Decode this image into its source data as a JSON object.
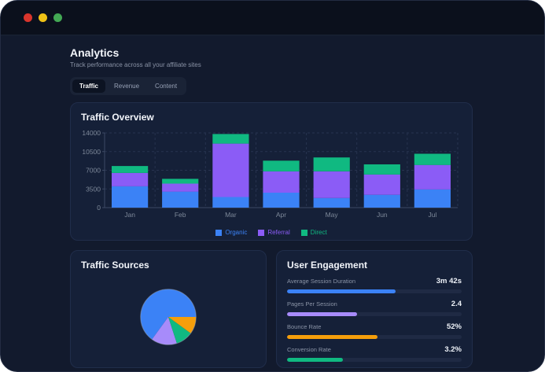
{
  "window": {
    "traffic_lights": [
      {
        "name": "close",
        "color": "#d9352c"
      },
      {
        "name": "minimize",
        "color": "#f0c216"
      },
      {
        "name": "maximize",
        "color": "#43a854"
      }
    ]
  },
  "header": {
    "title": "Analytics",
    "subtitle": "Track performance across all your affiliate sites"
  },
  "tabs": [
    {
      "label": "Traffic",
      "active": true
    },
    {
      "label": "Revenue",
      "active": false
    },
    {
      "label": "Content",
      "active": false
    }
  ],
  "traffic_overview": {
    "title": "Traffic Overview"
  },
  "traffic_sources": {
    "title": "Traffic Sources"
  },
  "user_engagement": {
    "title": "User Engagement",
    "metrics": [
      {
        "label": "Average Session Duration",
        "value": "3m 42s",
        "percent": 62,
        "color": "#3b82f6"
      },
      {
        "label": "Pages Per Session",
        "value": "2.4",
        "percent": 40,
        "color": "#a78bfa"
      },
      {
        "label": "Bounce Rate",
        "value": "52%",
        "percent": 52,
        "color": "#f59e0b"
      },
      {
        "label": "Conversion Rate",
        "value": "3.2%",
        "percent": 32,
        "color": "#10b981"
      }
    ]
  },
  "chart_data": [
    {
      "type": "bar",
      "stacked": true,
      "title": "Traffic Overview",
      "categories": [
        "Jan",
        "Feb",
        "Mar",
        "Apr",
        "May",
        "Jun",
        "Jul"
      ],
      "series": [
        {
          "name": "Organic",
          "color": "#3b82f6",
          "values": [
            4000,
            3000,
            2000,
            2800,
            1800,
            2400,
            3400
          ]
        },
        {
          "name": "Referral",
          "color": "#8b5cf6",
          "values": [
            2500,
            1500,
            10000,
            4000,
            5000,
            3800,
            4600
          ]
        },
        {
          "name": "Direct",
          "color": "#10b981",
          "values": [
            1300,
            900,
            1800,
            2000,
            2600,
            1900,
            2100
          ]
        }
      ],
      "xlabel": "",
      "ylabel": "",
      "ylim": [
        0,
        14000
      ],
      "yticks": [
        0,
        3500,
        7000,
        10500,
        14000
      ],
      "grid": "dashed",
      "legend_position": "bottom"
    },
    {
      "type": "pie",
      "title": "Traffic Sources",
      "segments": [
        {
          "name": "blue-segment",
          "color": "#3b82f6",
          "value": 65
        },
        {
          "name": "purple-segment",
          "color": "#a78bfa",
          "value": 15
        },
        {
          "name": "green-segment",
          "color": "#10b981",
          "value": 10
        },
        {
          "name": "orange-segment",
          "color": "#f59e0b",
          "value": 10
        }
      ],
      "start_angle_deg": 0,
      "direction": "counterclockwise",
      "legend_position": "none"
    }
  ],
  "colors": {
    "page_bg": "#121a2d",
    "titlebar_bg": "#0b101c",
    "card_bg": "#152038",
    "accent_blue": "#3b82f6",
    "accent_purple": "#8b5cf6",
    "accent_green": "#10b981",
    "accent_amber": "#f59e0b"
  }
}
